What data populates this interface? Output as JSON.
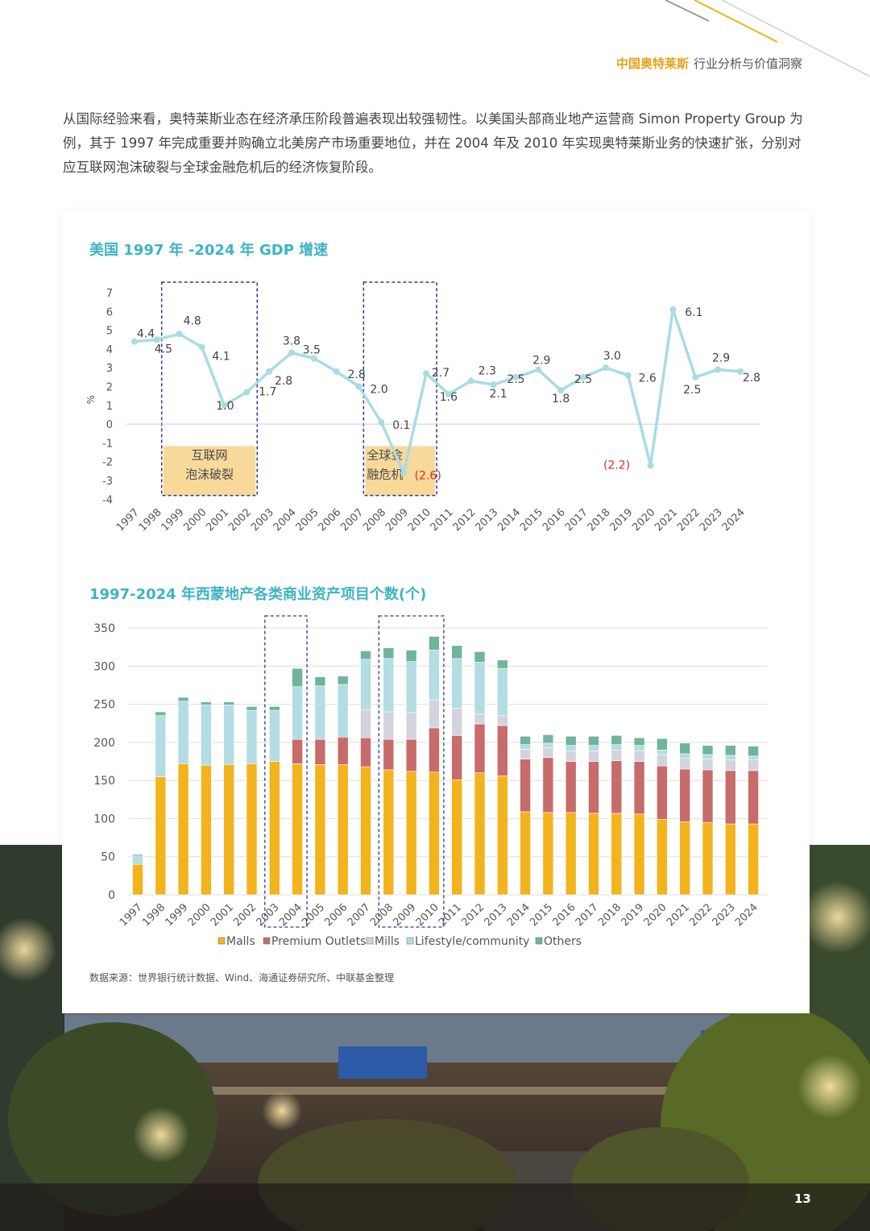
{
  "header": {
    "brand": "中国奥特莱斯",
    "subtitle": "行业分析与价值洞察"
  },
  "intro": "从国际经验来看，奥特莱斯业态在经济承压阶段普遍表现出较强韧性。以美国头部商业地产运营商 Simon Property Group 为例，其于 1997 年完成重要并购确立北美房产市场重要地位，并在 2004 年及 2010 年实现奥特莱斯业务的快速扩张，分别对应互联网泡沫破裂与全球金融危机后的经济恢复阶段。",
  "colors": {
    "accent_teal": "#3db3c4",
    "brand_gold": "#e8a21a",
    "line": "#a9dce3",
    "crisis_box": "#f7d99a",
    "negative_label": "#d62b2b"
  },
  "chart_data": [
    {
      "type": "line",
      "title": "美国 1997 年 -2024 年 GDP 增速",
      "ylabel": "%",
      "ylim": [
        -4,
        7
      ],
      "yticks": [
        7,
        6,
        5,
        4,
        3,
        2,
        1,
        0,
        -1,
        -2,
        -3,
        -4
      ],
      "x": [
        "1997",
        "1998",
        "1999",
        "2000",
        "2001",
        "2002",
        "2003",
        "2004",
        "2005",
        "2006",
        "2007",
        "2008",
        "2009",
        "2010",
        "2011",
        "2012",
        "2013",
        "2014",
        "2015",
        "2016",
        "2017",
        "2018",
        "2019",
        "2020",
        "2021",
        "2022",
        "2023",
        "2024"
      ],
      "values": [
        4.4,
        4.5,
        4.8,
        4.1,
        1.0,
        1.7,
        2.8,
        3.8,
        3.5,
        2.8,
        2.0,
        0.1,
        -2.6,
        2.7,
        1.6,
        2.3,
        2.1,
        2.5,
        2.9,
        1.8,
        2.5,
        3.0,
        2.6,
        -2.2,
        6.1,
        2.5,
        2.9,
        2.8
      ],
      "data_labels": [
        "4.4",
        "4.5",
        "4.8",
        "4.1",
        "1.0",
        "1.7",
        "2.8",
        "3.8",
        "3.5",
        "2.8",
        "2.0",
        "0.1",
        "(2.6)",
        "2.7",
        "1.6",
        "2.3",
        "2.1",
        "2.5",
        "2.9",
        "1.8",
        "2.5",
        "3.0",
        "2.6",
        "(2.2)",
        "6.1",
        "2.5",
        "2.9",
        "2.8"
      ],
      "annotations": [
        {
          "text_lines": [
            "互联网",
            "泡沫破裂"
          ],
          "from": "1999",
          "to": "2002"
        },
        {
          "text_lines": [
            "全球金",
            "融危机"
          ],
          "from": "2008",
          "to": "2010"
        }
      ]
    },
    {
      "type": "bar",
      "stacked": true,
      "title": "1997-2024 年西蒙地产各类商业资产项目个数(个)",
      "ylim": [
        0,
        350
      ],
      "yticks": [
        350,
        300,
        250,
        200,
        150,
        100,
        50,
        0
      ],
      "categories": [
        "1997",
        "1998",
        "1999",
        "2000",
        "2001",
        "2002",
        "2003",
        "2004",
        "2005",
        "2006",
        "2007",
        "2008",
        "2009",
        "2010",
        "2011",
        "2012",
        "2013",
        "2014",
        "2015",
        "2016",
        "2017",
        "2018",
        "2019",
        "2020",
        "2021",
        "2022",
        "2023",
        "2024"
      ],
      "series": [
        {
          "name": "Malls",
          "color": "#f2b31d",
          "values": [
            40,
            155,
            172,
            170,
            171,
            172,
            175,
            172,
            171,
            171,
            168,
            164,
            162,
            161,
            151,
            160,
            156,
            109,
            108,
            108,
            107,
            107,
            106,
            99,
            96,
            95,
            93,
            93
          ]
        },
        {
          "name": "Premium Outlets",
          "color": "#c76b6b",
          "values": [
            0,
            0,
            0,
            0,
            0,
            0,
            0,
            32,
            33,
            36,
            38,
            40,
            42,
            58,
            58,
            64,
            66,
            69,
            72,
            67,
            68,
            69,
            69,
            70,
            69,
            69,
            70,
            70
          ]
        },
        {
          "name": "Mills",
          "color": "#d3d3dd",
          "values": [
            0,
            0,
            0,
            0,
            0,
            0,
            0,
            0,
            0,
            0,
            37,
            36,
            35,
            37,
            36,
            13,
            13,
            13,
            13,
            14,
            14,
            14,
            14,
            15,
            14,
            14,
            14,
            14
          ]
        },
        {
          "name": "Lifestyle/community",
          "color": "#b3dce3",
          "values": [
            11,
            80,
            82,
            79,
            78,
            70,
            67,
            69,
            70,
            69,
            66,
            70,
            67,
            65,
            65,
            68,
            62,
            6,
            6,
            7,
            7,
            7,
            7,
            6,
            6,
            6,
            6,
            5
          ]
        },
        {
          "name": "Others",
          "color": "#6fb59b",
          "values": [
            2,
            5,
            5,
            4,
            4,
            5,
            5,
            24,
            12,
            11,
            11,
            14,
            15,
            18,
            17,
            14,
            11,
            11,
            11,
            12,
            12,
            12,
            10,
            15,
            14,
            12,
            13,
            13
          ]
        }
      ],
      "highlight_ranges": [
        {
          "from": "2003",
          "to": "2004"
        },
        {
          "from": "2008",
          "to": "2010"
        }
      ]
    }
  ],
  "source_note": "数据来源：世界银行统计数据、Wind、海通证券研究所、中联基金整理",
  "page_number": "13"
}
